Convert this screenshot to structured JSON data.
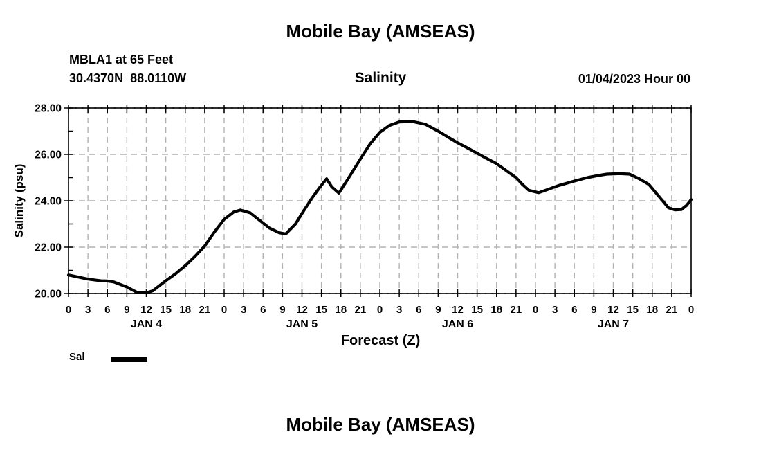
{
  "page": {
    "top_title": "Mobile Bay (AMSEAS)",
    "bottom_title": "Mobile Bay (AMSEAS)"
  },
  "header": {
    "station": "MBLA1 at 65 Feet",
    "coordinates": "30.4370N  88.0110W",
    "chart_subtitle": "Salinity",
    "run_time": "01/04/2023 Hour 00"
  },
  "legend": {
    "label": "Sal",
    "swatch_color": "#000000"
  },
  "chart_data": {
    "type": "line",
    "title": "Salinity",
    "xlabel": "Forecast (Z)",
    "ylabel": "Salinity (psu)",
    "ylim": [
      20,
      28
    ],
    "x_hours_span": 96,
    "x_tick_interval_hours": 3,
    "grid": true,
    "grid_color": "#b3b3b3",
    "line_color": "#000000",
    "y_ticks": [
      20,
      22,
      24,
      26,
      28
    ],
    "y_tick_labels": [
      "20.00",
      "22.00",
      "24.00",
      "26.00",
      "28.00"
    ],
    "y_minor_ticks": [
      21,
      23,
      25,
      27
    ],
    "x_tick_labels": [
      "0",
      "3",
      "6",
      "9",
      "12",
      "15",
      "18",
      "21",
      "0",
      "3",
      "6",
      "9",
      "12",
      "15",
      "18",
      "21",
      "0",
      "3",
      "6",
      "9",
      "12",
      "15",
      "18",
      "21",
      "0",
      "3",
      "6",
      "9",
      "12",
      "15",
      "18",
      "21",
      "0"
    ],
    "day_labels": [
      {
        "label": "JAN 4",
        "center_hour": 12
      },
      {
        "label": "JAN 5",
        "center_hour": 36
      },
      {
        "label": "JAN 6",
        "center_hour": 60
      },
      {
        "label": "JAN 7",
        "center_hour": 84
      }
    ],
    "series": [
      {
        "name": "Sal",
        "points": [
          [
            0,
            20.8
          ],
          [
            2,
            20.68
          ],
          [
            3,
            20.62
          ],
          [
            5,
            20.55
          ],
          [
            6,
            20.54
          ],
          [
            7,
            20.5
          ],
          [
            9,
            20.28
          ],
          [
            10.5,
            20.06
          ],
          [
            12,
            20.03
          ],
          [
            13,
            20.12
          ],
          [
            15,
            20.55
          ],
          [
            16.5,
            20.85
          ],
          [
            18,
            21.2
          ],
          [
            19.5,
            21.6
          ],
          [
            21,
            22.05
          ],
          [
            22.5,
            22.65
          ],
          [
            24,
            23.2
          ],
          [
            25.5,
            23.52
          ],
          [
            26.5,
            23.6
          ],
          [
            28,
            23.48
          ],
          [
            29.5,
            23.15
          ],
          [
            31,
            22.82
          ],
          [
            32.5,
            22.62
          ],
          [
            33.5,
            22.57
          ],
          [
            35,
            23.0
          ],
          [
            36,
            23.45
          ],
          [
            37.5,
            24.1
          ],
          [
            38.8,
            24.6
          ],
          [
            39.8,
            24.95
          ],
          [
            40.6,
            24.6
          ],
          [
            41.7,
            24.33
          ],
          [
            43,
            24.9
          ],
          [
            44,
            25.35
          ],
          [
            45,
            25.8
          ],
          [
            46.5,
            26.45
          ],
          [
            48,
            26.95
          ],
          [
            49.5,
            27.25
          ],
          [
            51,
            27.4
          ],
          [
            53,
            27.42
          ],
          [
            55,
            27.3
          ],
          [
            57,
            27.0
          ],
          [
            58.5,
            26.75
          ],
          [
            60,
            26.5
          ],
          [
            61.5,
            26.28
          ],
          [
            63,
            26.05
          ],
          [
            64.5,
            25.82
          ],
          [
            66,
            25.6
          ],
          [
            67.5,
            25.3
          ],
          [
            69,
            25.0
          ],
          [
            70,
            24.7
          ],
          [
            71,
            24.45
          ],
          [
            72.5,
            24.35
          ],
          [
            74,
            24.5
          ],
          [
            75.5,
            24.65
          ],
          [
            78,
            24.85
          ],
          [
            80,
            25.0
          ],
          [
            81.5,
            25.08
          ],
          [
            83,
            25.15
          ],
          [
            85,
            25.17
          ],
          [
            86.5,
            25.15
          ],
          [
            88,
            24.95
          ],
          [
            89.5,
            24.7
          ],
          [
            91,
            24.2
          ],
          [
            92.5,
            23.7
          ],
          [
            93.5,
            23.61
          ],
          [
            94.5,
            23.62
          ],
          [
            95.3,
            23.8
          ],
          [
            96,
            24.05
          ]
        ]
      }
    ]
  }
}
